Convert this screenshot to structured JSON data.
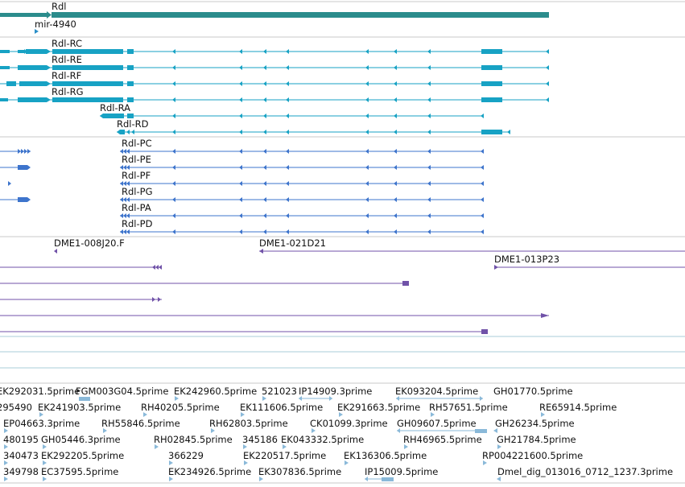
{
  "colors": {
    "gene": "#2b8c8c",
    "transcript": "#17a2c4",
    "protein": "#3d74cc",
    "clone": "#7052a8",
    "est": "#8ab9d9",
    "divider": "#c8c8c8",
    "track_line": "#a8cdd8"
  },
  "gene_track": {
    "gene": {
      "label": "Rdl"
    },
    "mirna": {
      "label": "mir-4940"
    }
  },
  "transcripts": [
    {
      "label": "Rdl-RC"
    },
    {
      "label": "Rdl-RE"
    },
    {
      "label": "Rdl-RF"
    },
    {
      "label": "Rdl-RG"
    },
    {
      "label": "Rdl-RA"
    },
    {
      "label": "Rdl-RD"
    }
  ],
  "proteins": [
    {
      "label": "Rdl-PC"
    },
    {
      "label": "Rdl-PE"
    },
    {
      "label": "Rdl-PF"
    },
    {
      "label": "Rdl-PG"
    },
    {
      "label": "Rdl-PA"
    },
    {
      "label": "Rdl-PD"
    }
  ],
  "clones": [
    {
      "label": "DME1-008J20.F"
    },
    {
      "label": "DME1-021D21"
    },
    {
      "label": "DME1-013P23"
    }
  ],
  "ests": [
    {
      "label": "EK292031.5prime"
    },
    {
      "label": "FGM003G04.5prime"
    },
    {
      "label": "EK242960.5prime"
    },
    {
      "label": "521023"
    },
    {
      "label": "IP14909.3prime"
    },
    {
      "label": "EK093204.5prime"
    },
    {
      "label": "GH01770.5prime"
    },
    {
      "label": "295490"
    },
    {
      "label": "EK241903.5prime"
    },
    {
      "label": "RH40205.5prime"
    },
    {
      "label": "EK111606.5prime"
    },
    {
      "label": "EK291663.5prime"
    },
    {
      "label": "RH57651.5prime"
    },
    {
      "label": "RE65914.5prime"
    },
    {
      "label": "EP04663.3prime"
    },
    {
      "label": "RH55846.5prime"
    },
    {
      "label": "RH62803.5prime"
    },
    {
      "label": "CK01099.3prime"
    },
    {
      "label": "GH09607.5prime"
    },
    {
      "label": "GH26234.5prime"
    },
    {
      "label": "480195"
    },
    {
      "label": "GH05446.3prime"
    },
    {
      "label": "RH02845.5prime"
    },
    {
      "label": "345186"
    },
    {
      "label": "EK043332.5prime"
    },
    {
      "label": "RH46965.5prime"
    },
    {
      "label": "GH21784.5prime"
    },
    {
      "label": "340473"
    },
    {
      "label": "EK292205.5prime"
    },
    {
      "label": "366229"
    },
    {
      "label": "EK220517.5prime"
    },
    {
      "label": "EK136306.5prime"
    },
    {
      "label": "RP004221600.5prime"
    },
    {
      "label": "349798"
    },
    {
      "label": "EC37595.5prime"
    },
    {
      "label": "EK234926.5prime"
    },
    {
      "label": "EK307836.5prime"
    },
    {
      "label": "IP15009.5prime"
    },
    {
      "label": "Dmel_dig_013016_0712_1237.3prime"
    }
  ]
}
